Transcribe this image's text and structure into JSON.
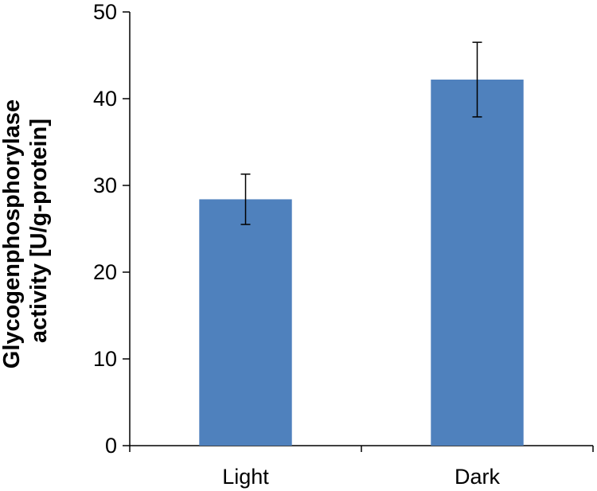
{
  "chart_data": {
    "type": "bar",
    "title": "",
    "xlabel": "",
    "ylabel_lines": [
      "Glycogenphosphorylase",
      "activity [U/g-protein]"
    ],
    "categories": [
      "Light",
      "Dark"
    ],
    "values": [
      28.4,
      42.2
    ],
    "errors": [
      2.9,
      4.3
    ],
    "ylim": [
      0,
      50
    ],
    "yticks": [
      0,
      10,
      20,
      30,
      40,
      50
    ],
    "bar_color": "#4F81BD",
    "grid": false,
    "legend": "none"
  }
}
